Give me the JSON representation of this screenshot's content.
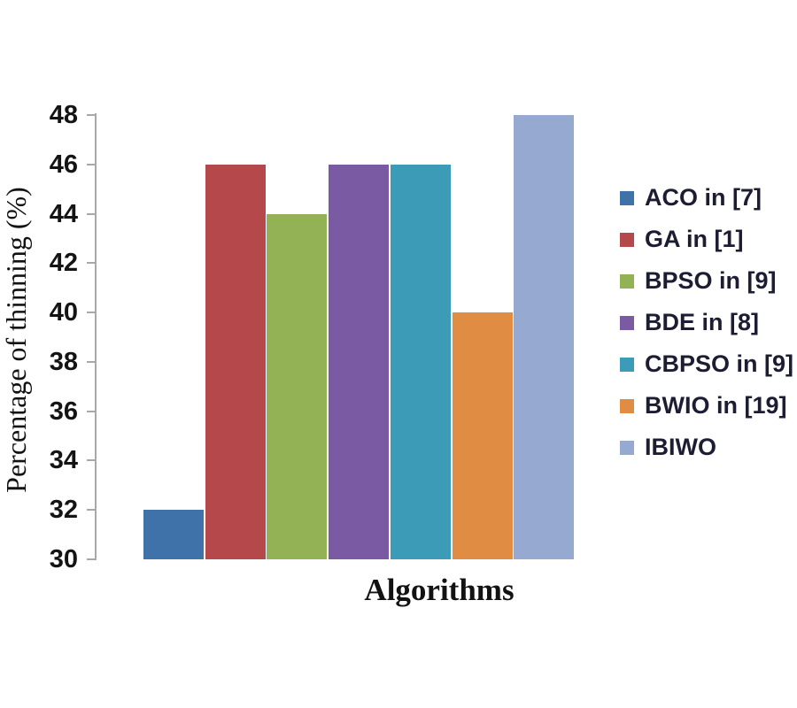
{
  "chart_data": {
    "type": "bar",
    "title": "",
    "xlabel": "Algorithms",
    "ylabel": "Percentage of thinning (%)",
    "ylim": [
      30,
      48
    ],
    "yticks": [
      30,
      32,
      34,
      36,
      38,
      40,
      42,
      44,
      46,
      48
    ],
    "grid": false,
    "legend_position": "right",
    "categories": [
      "ACO in [7]",
      "GA in [1]",
      "BPSO in [9]",
      "BDE in [8]",
      "CBPSO in [9]",
      "BWIO in [19]",
      "IBIWO"
    ],
    "values": [
      32,
      46,
      44,
      46,
      46,
      40,
      48
    ],
    "colors": [
      "#3f72a9",
      "#b4484a",
      "#93b155",
      "#7a5ba3",
      "#3c9cb8",
      "#e08c43",
      "#95a9d1"
    ]
  },
  "style_colors": {
    "axis": "#a8a8a8",
    "tick_label": "#141414",
    "legend_text": "#1c1c33",
    "background": "#ffffff"
  }
}
